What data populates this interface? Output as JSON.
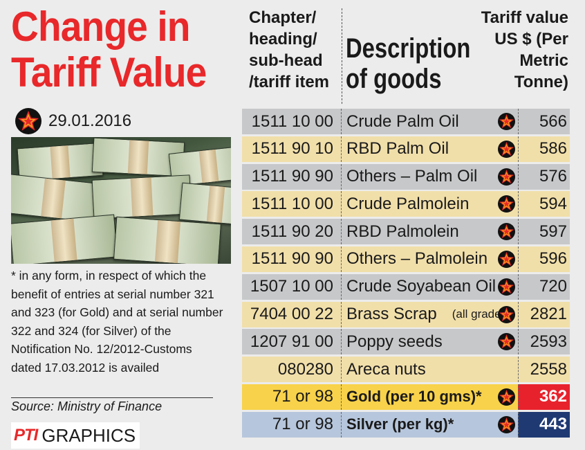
{
  "title_line1": "Change in",
  "title_line2": "Tariff Value",
  "date": "29.01.2016",
  "headers": {
    "code": [
      "Chapter/",
      "heading/",
      "sub-head",
      "/tariff item"
    ],
    "description": [
      "Description",
      "of goods"
    ],
    "value": [
      "Tariff value",
      "US $ (Per",
      "Metric",
      "Tonne)"
    ]
  },
  "note": "* in any form, in respect of which the benefit of entries at serial number 321 and 323 (for Gold) and at serial number 322 and 324 (for Silver) of the Notification No. 12/2012-Customs dated 17.03.2012 is availed",
  "source": "Source: Ministry of Finance",
  "logo": {
    "pti": "PTI",
    "graphics": "GRAPHICS"
  },
  "colors": {
    "title_red": "#e8282a",
    "gold_row": "#f8d24a",
    "silver_row": "#b6c6dc",
    "gold_value": "#e8222c",
    "silver_value": "#1f3a73"
  },
  "chart_data": {
    "type": "table",
    "title": "Change in Tariff Value",
    "columns": [
      "Chapter/heading/sub-head/tariff item",
      "Description of goods",
      "Tariff value US $ (Per Metric Tonne)"
    ],
    "rows": [
      {
        "code": "1511 10 00",
        "description": "Crude Palm Oil",
        "note": "",
        "value": "566",
        "changed": true,
        "style": "gray"
      },
      {
        "code": "1511 90 10",
        "description": "RBD Palm Oil",
        "note": "",
        "value": "586",
        "changed": true,
        "style": "tan"
      },
      {
        "code": "1511 90 90",
        "description": "Others – Palm Oil",
        "note": "",
        "value": "576",
        "changed": true,
        "style": "gray"
      },
      {
        "code": "1511 10 00",
        "description": "Crude Palmolein",
        "note": "",
        "value": "594",
        "changed": true,
        "style": "tan"
      },
      {
        "code": "1511 90 20",
        "description": "RBD Palmolein",
        "note": "",
        "value": "597",
        "changed": true,
        "style": "gray"
      },
      {
        "code": "1511 90 90",
        "description": "Others – Palmolein",
        "note": "",
        "value": "596",
        "changed": true,
        "style": "tan"
      },
      {
        "code": "1507 10 00",
        "description": "Crude Soyabean Oil",
        "note": "",
        "value": "720",
        "changed": true,
        "style": "gray"
      },
      {
        "code": "7404 00 22",
        "description": "Brass Scrap",
        "note": "(all grades)",
        "value": "2821",
        "changed": true,
        "style": "tan"
      },
      {
        "code": "1207 91 00",
        "description": "Poppy seeds",
        "note": "",
        "value": "2593",
        "changed": true,
        "style": "gray"
      },
      {
        "code": "080280",
        "description": "Areca nuts",
        "note": "",
        "value": "2558",
        "changed": false,
        "style": "tan"
      },
      {
        "code": "71 or 98",
        "description": "Gold (per 10 gms)*",
        "note": "",
        "value": "362",
        "changed": true,
        "style": "gold"
      },
      {
        "code": "71 or 98",
        "description": "Silver (per kg)*",
        "note": "",
        "value": "443",
        "changed": true,
        "style": "silver"
      }
    ]
  }
}
